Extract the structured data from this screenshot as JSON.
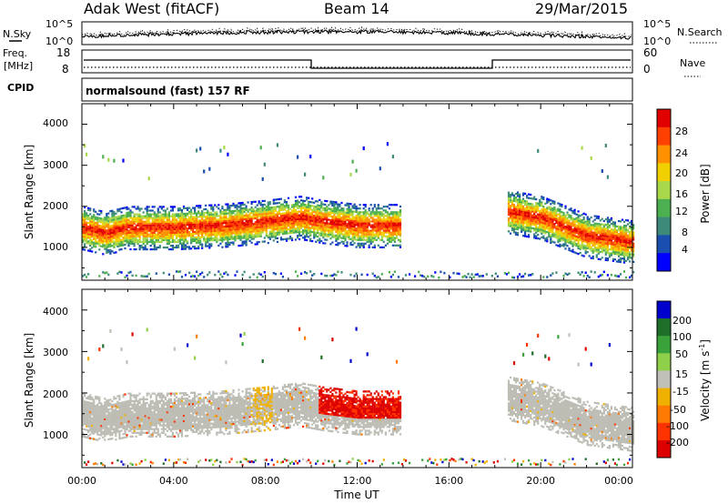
{
  "header": {
    "site": "Adak West (fitACF)",
    "beam": "Beam 14",
    "date": "29/Mar/2015"
  },
  "noise_panel": {
    "left_label": "N.Sky",
    "left_ticks": [
      "10^5",
      "10^0"
    ],
    "right_label": "N.Search",
    "right_ticks": [
      "10^5",
      "10^0"
    ]
  },
  "freq_panel": {
    "left_label_1": "Freq.",
    "left_label_2": "[MHz]",
    "left_ticks": [
      "18",
      "8"
    ],
    "right_label": "Nave",
    "right_ticks": [
      "60",
      "0"
    ],
    "cpid_label": "CPID",
    "cpid_text": "normalsound (fast) 157 RF"
  },
  "colors": {
    "power_scale": [
      "#0000ff",
      "#1a4fb0",
      "#3d8a7a",
      "#4caf50",
      "#a8d84a",
      "#f0d000",
      "#ff9000",
      "#ff4000",
      "#e00000"
    ],
    "velocity_scale": [
      "#0000cc",
      "#1f6e2a",
      "#3aa23a",
      "#8fd04a",
      "#c0c0b8",
      "#f0b000",
      "#ff7a00",
      "#ff3300",
      "#dd0000"
    ],
    "ground_scatter": "#bdbdb5"
  },
  "chart_data": [
    {
      "type": "heatmap",
      "title": "Power",
      "xlabel": "Time UT",
      "ylabel": "Slant Range [km]",
      "x_ticks": [
        "00:00",
        "04:00",
        "08:00",
        "12:00",
        "16:00",
        "20:00",
        "00:00"
      ],
      "xlim": [
        "00:00",
        "24:00"
      ],
      "y_ticks": [
        "1000",
        "2000",
        "3000",
        "4000"
      ],
      "ylim": [
        200,
        4500
      ],
      "colorbar_label": "Power [dB]",
      "colorbar_ticks": [
        "4",
        "8",
        "12",
        "16",
        "20",
        "24",
        "28"
      ],
      "colorbar_range": [
        0,
        30
      ],
      "band_center_km": [
        [
          0,
          1450
        ],
        [
          1,
          1320
        ],
        [
          2,
          1450
        ],
        [
          4,
          1450
        ],
        [
          6,
          1500
        ],
        [
          8,
          1600
        ],
        [
          9.5,
          1700
        ],
        [
          10.5,
          1600
        ],
        [
          12,
          1500
        ],
        [
          13.8,
          1500
        ],
        [
          18,
          1900
        ],
        [
          20,
          1700
        ],
        [
          22,
          1250
        ],
        [
          24,
          1100
        ]
      ]
    },
    {
      "type": "heatmap",
      "title": "Velocity",
      "xlabel": "Time UT",
      "ylabel": "Slant Range [km]",
      "x_ticks": [
        "00:00",
        "04:00",
        "08:00",
        "12:00",
        "16:00",
        "20:00",
        "00:00"
      ],
      "xlim": [
        "00:00",
        "24:00"
      ],
      "y_ticks": [
        "1000",
        "2000",
        "3000",
        "4000"
      ],
      "ylim": [
        200,
        4500
      ],
      "colorbar_label": "Velocity [m s",
      "colorbar_label_sup": "-1",
      "colorbar_label_end": "]",
      "colorbar_ticks": [
        "200",
        "100",
        "50",
        "15",
        "-15",
        "-50",
        "-100",
        "-200"
      ],
      "colorbar_range": [
        -250,
        250
      ]
    }
  ]
}
